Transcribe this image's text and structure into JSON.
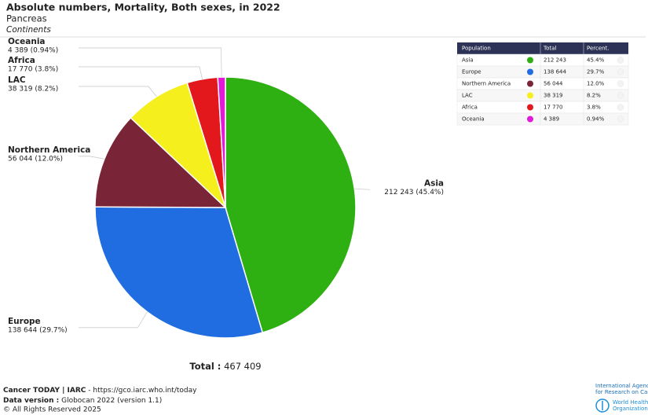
{
  "chart_data": {
    "type": "pie",
    "title": "Absolute numbers, Mortality, Both sexes, in 2022",
    "subtitle": "Pancreas",
    "caption": "Continents",
    "categories": [
      "Asia",
      "Europe",
      "Northern America",
      "LAC",
      "Africa",
      "Oceania"
    ],
    "values": [
      212243,
      138644,
      56044,
      38319,
      17770,
      4389
    ],
    "value_labels": [
      "212 243 (45.4%)",
      "138 644 (29.7%)",
      "56 044 (12.0%)",
      "38 319 (8.2%)",
      "17 770 (3.8%)",
      "4 389 (0.94%)"
    ],
    "colors": [
      "#2eaf12",
      "#1f6de0",
      "#7a2437",
      "#f5ef1e",
      "#e3181d",
      "#e11ad8"
    ],
    "total_label": "Total :",
    "total": {
      "value": 467409,
      "label": "467 409"
    }
  },
  "table": {
    "header": [
      "Population",
      "Total",
      "Percent."
    ],
    "rows": [
      [
        "Asia",
        "212 243",
        "45.4%"
      ],
      [
        "Europe",
        "138 644",
        "29.7%"
      ],
      [
        "Northern America",
        "56 044",
        "12.0%"
      ],
      [
        "LAC",
        "38 319",
        "8.2%"
      ],
      [
        "Africa",
        "17 770",
        "3.8%"
      ],
      [
        "Oceania",
        "4 389",
        "0.94%"
      ]
    ]
  },
  "footer": {
    "source": "Cancer TODAY | IARC",
    "link": "- https://gco.iarc.who.int/today",
    "version_label": "Data version :",
    "version": "Globocan 2022 (version 1.1)",
    "copyright": "© All Rights Reserved 2025",
    "iarc": [
      "International Agency",
      "for Research on Cancer"
    ],
    "who": [
      "World Health",
      "Organization"
    ]
  }
}
